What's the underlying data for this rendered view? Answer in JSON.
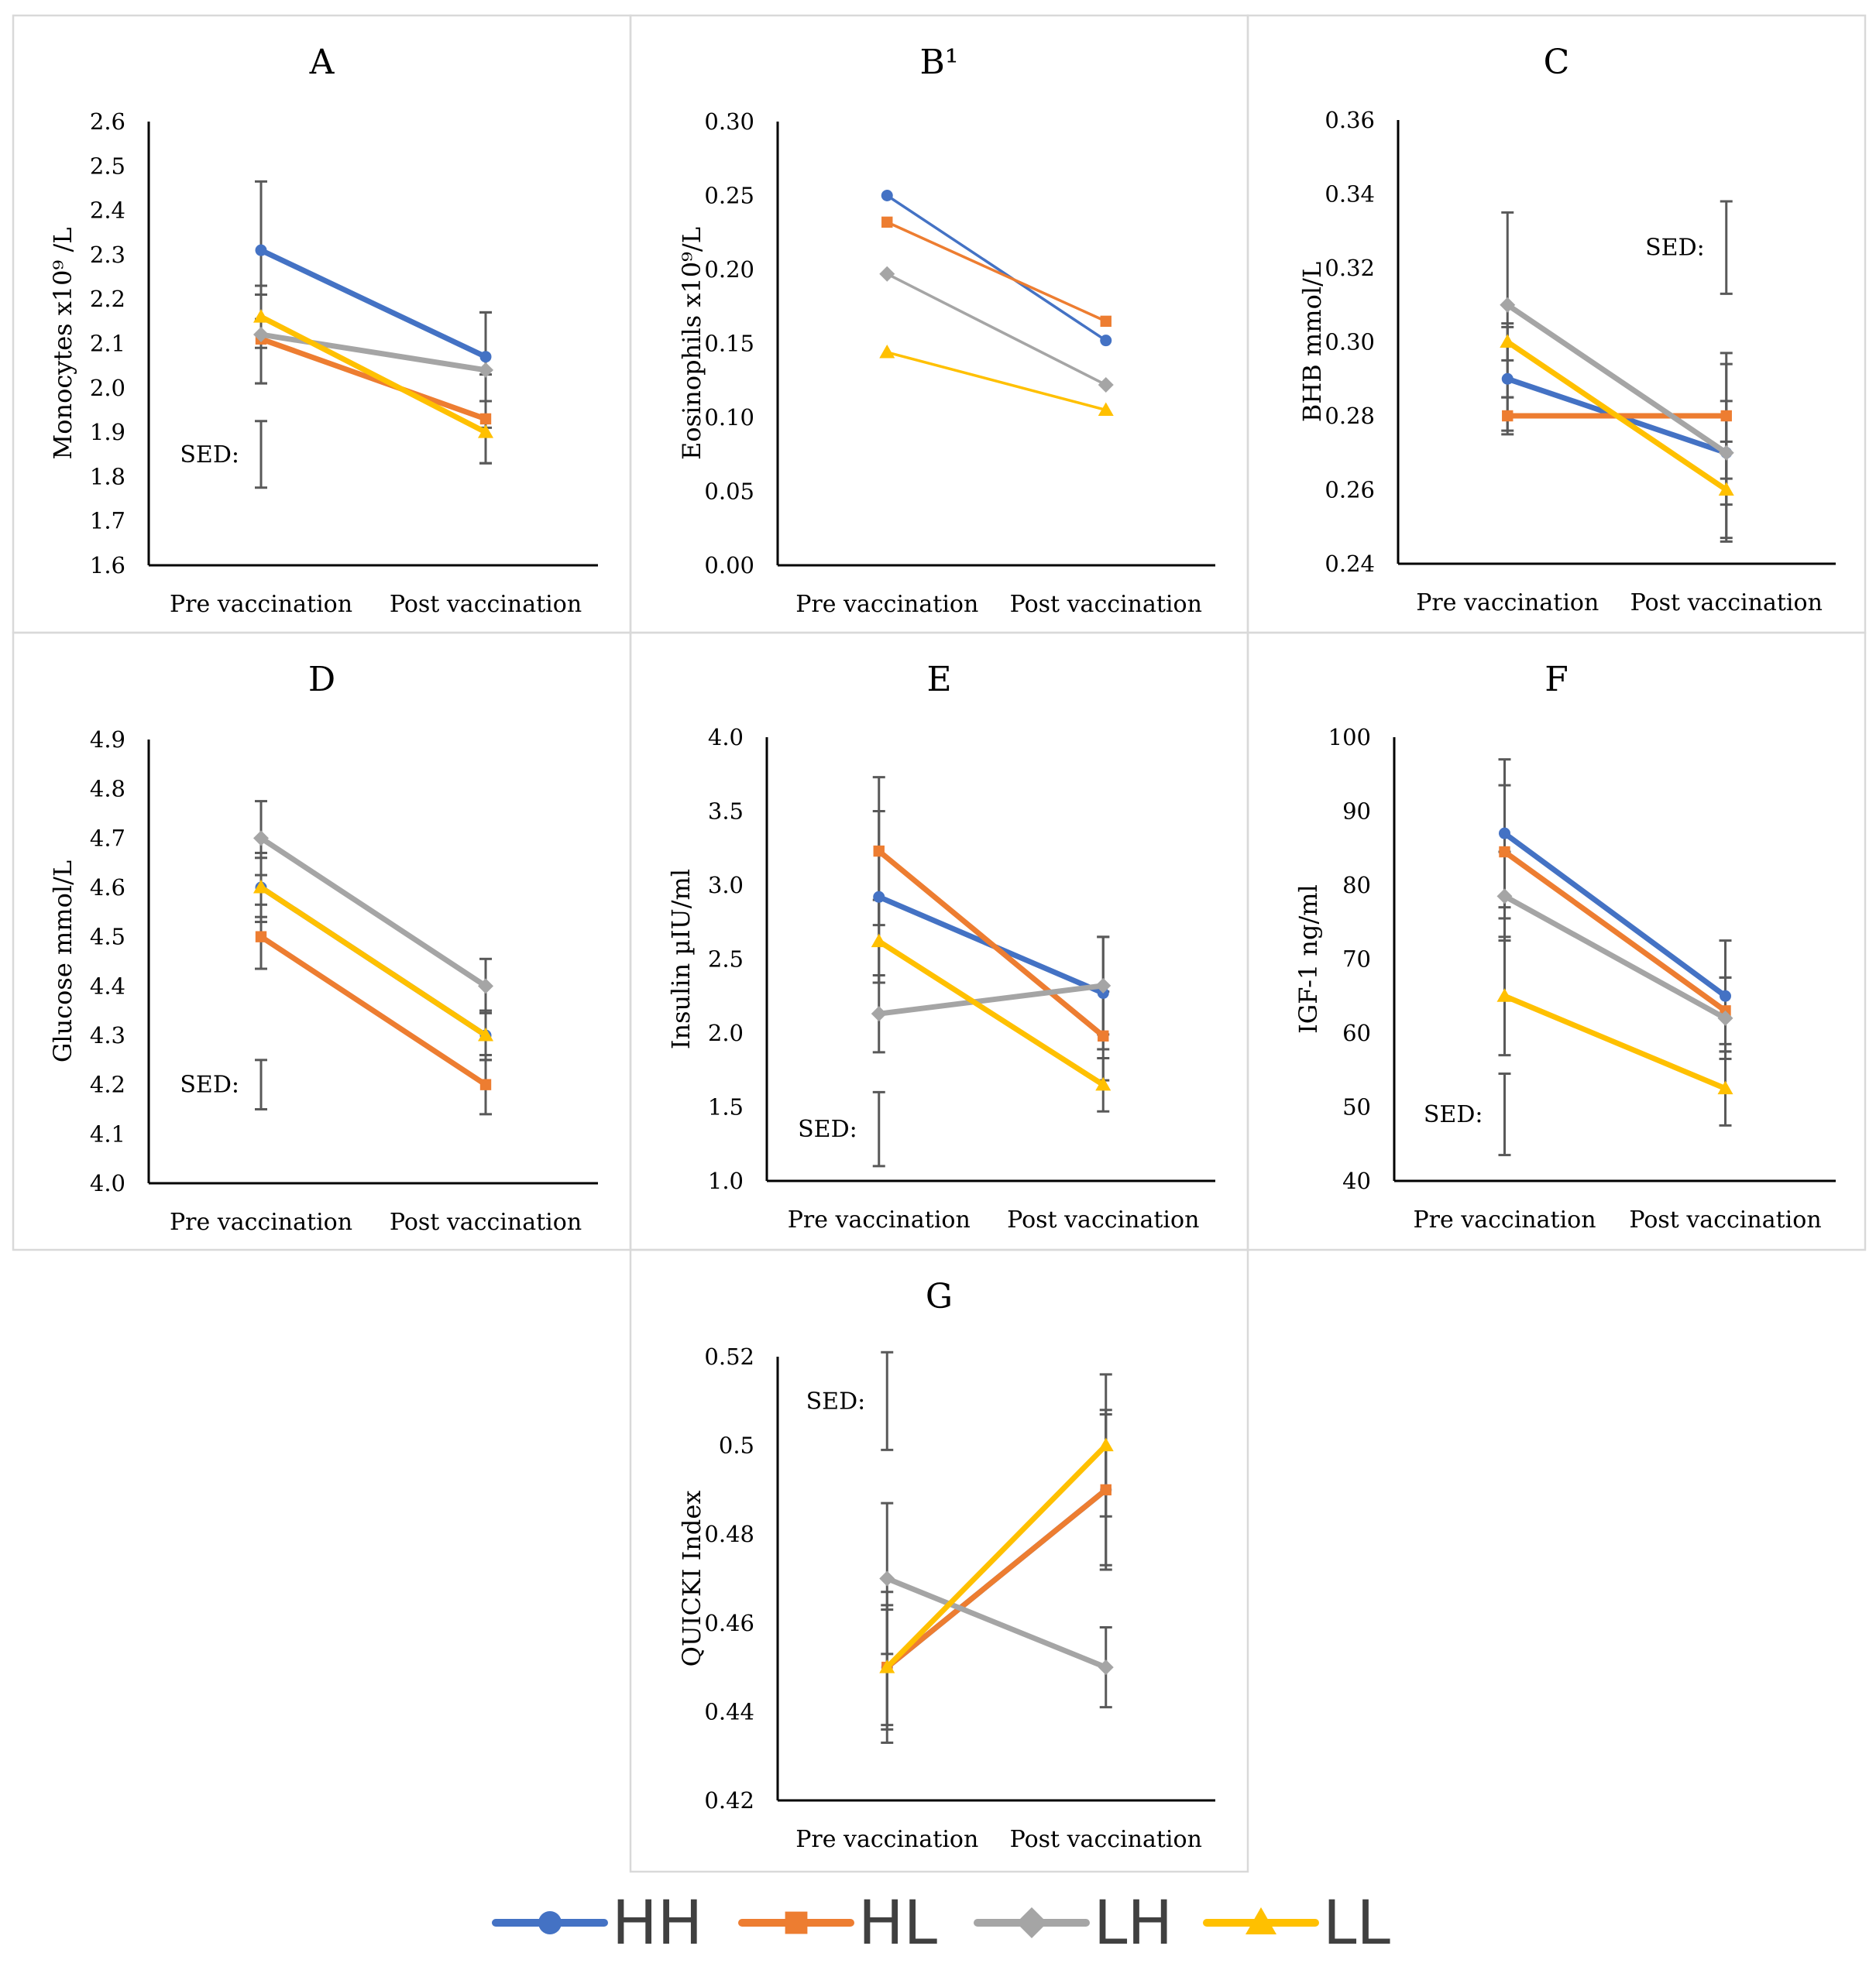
{
  "x_categories": [
    "Pre vaccination",
    "Post vaccination"
  ],
  "sed_label": "SED:",
  "legend": [
    {
      "name": "HH",
      "color": "#4472C4",
      "marker": "circle"
    },
    {
      "name": "HL",
      "color": "#ED7D31",
      "marker": "square"
    },
    {
      "name": "LH",
      "color": "#A5A5A5",
      "marker": "diamond"
    },
    {
      "name": "LL",
      "color": "#FFC000",
      "marker": "triangle"
    }
  ],
  "chart_data": [
    {
      "type": "line",
      "title": "A",
      "ylabel": "Monocytes x10⁹ /L",
      "ylim": [
        1.6,
        2.6
      ],
      "ticks": [
        "1.6",
        "1.7",
        "1.8",
        "1.9",
        "2.0",
        "2.1",
        "2.2",
        "2.3",
        "2.4",
        "2.5",
        "2.6"
      ],
      "categories": [
        "Pre vaccination",
        "Post vaccination"
      ],
      "series": [
        {
          "name": "HH",
          "values": [
            2.31,
            2.07
          ],
          "err": [
            0.155,
            0.1
          ]
        },
        {
          "name": "HL",
          "values": [
            2.11,
            1.93
          ],
          "err": [
            0.1,
            0.1
          ]
        },
        {
          "name": "LH",
          "values": [
            2.12,
            2.04
          ],
          "err": [
            0.11,
            0.13
          ]
        },
        {
          "name": "LL",
          "values": [
            2.16,
            1.9
          ],
          "err": [
            0.07,
            0.07
          ]
        }
      ],
      "sed": {
        "x": "Pre vaccination",
        "offset": 0,
        "center": 1.85,
        "half": 0.075,
        "label_side": "left"
      },
      "line_width": 7
    },
    {
      "type": "line",
      "title": "B¹",
      "ylabel": "Eosinophils x10⁹/L",
      "ylim": [
        0.0,
        0.3
      ],
      "ticks": [
        "0.00",
        "0.05",
        "0.10",
        "0.15",
        "0.20",
        "0.25",
        "0.30"
      ],
      "categories": [
        "Pre vaccination",
        "Post vaccination"
      ],
      "series": [
        {
          "name": "HH",
          "values": [
            0.25,
            0.152
          ],
          "err": [
            0,
            0
          ]
        },
        {
          "name": "HL",
          "values": [
            0.232,
            0.165
          ],
          "err": [
            0,
            0
          ]
        },
        {
          "name": "LH",
          "values": [
            0.197,
            0.122
          ],
          "err": [
            0,
            0
          ]
        },
        {
          "name": "LL",
          "values": [
            0.144,
            0.105
          ],
          "err": [
            0,
            0
          ]
        }
      ],
      "sed": null,
      "line_width": 3.5
    },
    {
      "type": "line",
      "title": "C",
      "ylabel": "BHB mmol/L",
      "ylim": [
        0.24,
        0.36
      ],
      "ticks": [
        "0.24",
        "0.26",
        "0.28",
        "0.30",
        "0.32",
        "0.34",
        "0.36"
      ],
      "categories": [
        "Pre vaccination",
        "Post vaccination"
      ],
      "series": [
        {
          "name": "HH",
          "values": [
            0.29,
            0.27
          ],
          "err": [
            0.014,
            0.014
          ]
        },
        {
          "name": "HL",
          "values": [
            0.28,
            0.28
          ],
          "err": [
            0.005,
            0.017
          ]
        },
        {
          "name": "LH",
          "values": [
            0.31,
            0.27
          ],
          "err": [
            0.025,
            0.024
          ]
        },
        {
          "name": "LL",
          "values": [
            0.3,
            0.26
          ],
          "err": [
            0.005,
            0.013
          ]
        }
      ],
      "sed": {
        "x": "Post vaccination",
        "offset": 0,
        "center": 0.3255,
        "half": 0.0125,
        "label_side": "left"
      },
      "line_width": 7
    },
    {
      "type": "line",
      "title": "D",
      "ylabel": "Glucose mmol/L",
      "ylim": [
        4.0,
        4.9
      ],
      "ticks": [
        "4.0",
        "4.1",
        "4.2",
        "4.3",
        "4.4",
        "4.5",
        "4.6",
        "4.7",
        "4.8",
        "4.9"
      ],
      "categories": [
        "Pre vaccination",
        "Post vaccination"
      ],
      "series": [
        {
          "name": "HH",
          "values": [
            4.6,
            4.3
          ],
          "err": [
            0.07,
            0.05
          ]
        },
        {
          "name": "HL",
          "values": [
            4.5,
            4.2
          ],
          "err": [
            0.065,
            0.06
          ]
        },
        {
          "name": "LH",
          "values": [
            4.7,
            4.4
          ],
          "err": [
            0.075,
            0.055
          ]
        },
        {
          "name": "LL",
          "values": [
            4.6,
            4.3
          ],
          "err": [
            0.06,
            0.05
          ]
        }
      ],
      "sed": {
        "x": "Pre vaccination",
        "offset": 0,
        "center": 4.2,
        "half": 0.05,
        "label_side": "left"
      },
      "line_width": 7
    },
    {
      "type": "line",
      "title": "E",
      "ylabel": "Insulin µIU/ml",
      "ylim": [
        1.0,
        4.0
      ],
      "ticks": [
        "1.0",
        "1.5",
        "2.0",
        "2.5",
        "3.0",
        "3.5",
        "4.0"
      ],
      "categories": [
        "Pre vaccination",
        "Post vaccination"
      ],
      "series": [
        {
          "name": "HH",
          "values": [
            2.92,
            2.27
          ],
          "err": [
            0.58,
            0.38
          ]
        },
        {
          "name": "HL",
          "values": [
            3.23,
            1.98
          ],
          "err": [
            0.5,
            0.3
          ]
        },
        {
          "name": "LH",
          "values": [
            2.13,
            2.32
          ],
          "err": [
            0.26,
            0.33
          ]
        },
        {
          "name": "LL",
          "values": [
            2.62,
            1.65
          ],
          "err": [
            0.28,
            0.18
          ]
        }
      ],
      "sed": {
        "x": "Pre vaccination",
        "offset": 0,
        "center": 1.35,
        "half": 0.25,
        "label_side": "left"
      },
      "line_width": 7
    },
    {
      "type": "line",
      "title": "F",
      "ylabel": "IGF-1 ng/ml",
      "ylim": [
        40,
        100
      ],
      "ticks": [
        "40",
        "50",
        "60",
        "70",
        "80",
        "90",
        "100"
      ],
      "categories": [
        "Pre vaccination",
        "Post vaccination"
      ],
      "series": [
        {
          "name": "HH",
          "values": [
            87,
            65
          ],
          "err": [
            10,
            7.5
          ]
        },
        {
          "name": "HL",
          "values": [
            84.5,
            63
          ],
          "err": [
            9,
            4.5
          ]
        },
        {
          "name": "LH",
          "values": [
            78.5,
            62
          ],
          "err": [
            6,
            5.5
          ]
        },
        {
          "name": "LL",
          "values": [
            65,
            52.5
          ],
          "err": [
            8,
            5
          ]
        }
      ],
      "sed": {
        "x": "Pre vaccination",
        "offset": 0,
        "center": 49,
        "half": 5.5,
        "label_side": "left"
      },
      "line_width": 7
    },
    {
      "type": "line",
      "title": "G",
      "ylabel": "QUICKI Index",
      "ylim": [
        0.42,
        0.52
      ],
      "ticks": [
        "0.42",
        "0.44",
        "0.46",
        "0.48",
        "0.5",
        "0.52"
      ],
      "categories": [
        "Pre vaccination",
        "Post vaccination"
      ],
      "series": [
        {
          "name": "HH",
          "values": [
            0.45,
            0.49
          ],
          "err": [
            0.013,
            0.017
          ]
        },
        {
          "name": "HL",
          "values": [
            0.45,
            0.49
          ],
          "err": [
            0.017,
            0.018
          ]
        },
        {
          "name": "LH",
          "values": [
            0.47,
            0.45
          ],
          "err": [
            0.017,
            0.009
          ]
        },
        {
          "name": "LL",
          "values": [
            0.45,
            0.5
          ],
          "err": [
            0.014,
            0.016
          ]
        }
      ],
      "sed": {
        "x": "Pre vaccination",
        "offset": 0,
        "center": 0.51,
        "half": 0.011,
        "label_side": "left"
      },
      "line_width": 7
    }
  ]
}
